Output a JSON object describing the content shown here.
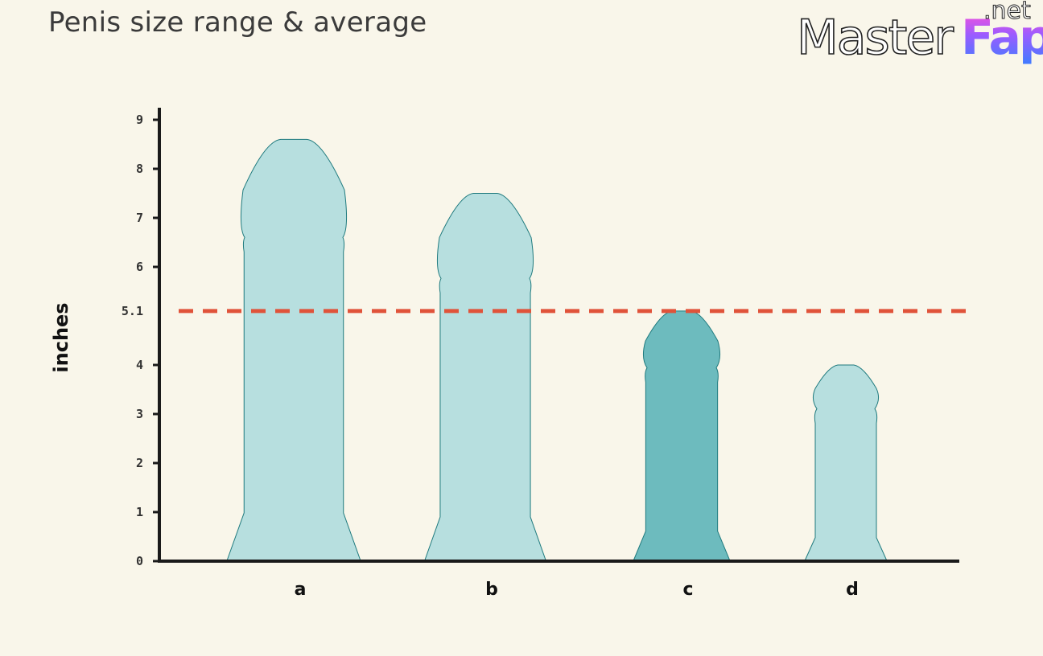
{
  "header": {
    "title": "Penis size range & average"
  },
  "watermark": {
    "master": "Master",
    "fap": "Fap",
    "net": ".net"
  },
  "chart_data": {
    "type": "bar",
    "title": "Penis size range & average",
    "xlabel": "",
    "ylabel": "inches",
    "ylim": [
      0,
      9
    ],
    "yticks": [
      {
        "value": 0,
        "label": "0"
      },
      {
        "value": 1,
        "label": "1"
      },
      {
        "value": 2,
        "label": "2"
      },
      {
        "value": 3,
        "label": "3"
      },
      {
        "value": 4,
        "label": "4"
      },
      {
        "value": 5.1,
        "label": "5.1"
      },
      {
        "value": 6,
        "label": "6"
      },
      {
        "value": 7,
        "label": "7"
      },
      {
        "value": 8,
        "label": "8"
      },
      {
        "value": 9,
        "label": "9"
      }
    ],
    "categories": [
      "a",
      "b",
      "c",
      "d"
    ],
    "values": [
      8.6,
      7.5,
      5.1,
      4.0
    ],
    "average_line": 5.1,
    "colors": {
      "bar": "#b7dfdf",
      "highlight_bar": "#6dbbbe",
      "bar_stroke": "#1f7a7e",
      "average_line": "#e0533a",
      "axis": "#1a1a1a"
    },
    "highlight_index": 2,
    "grid": false
  }
}
